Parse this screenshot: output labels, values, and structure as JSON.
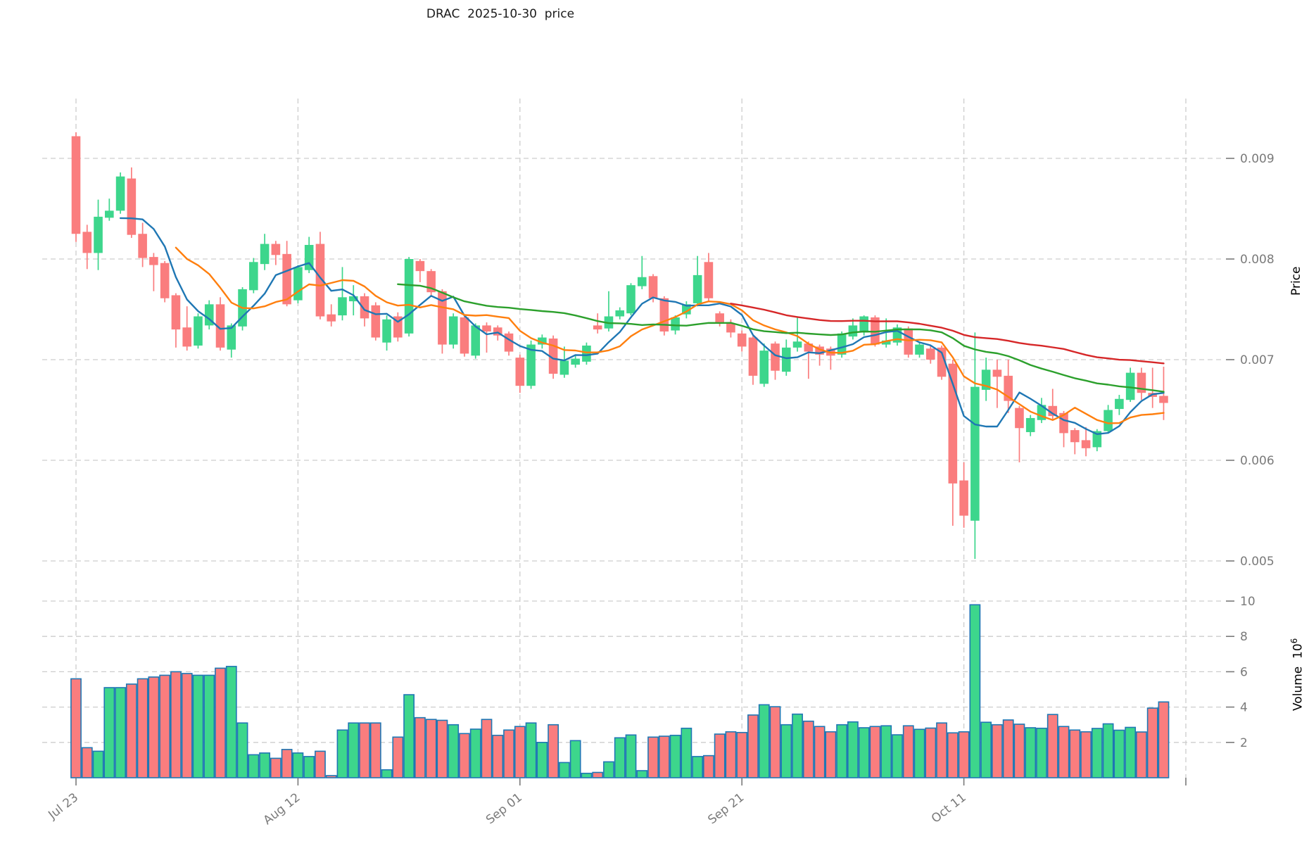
{
  "title": "DRAC  2025-10-30  price",
  "axes": {
    "price_label": "Price",
    "volume_label": "Volume  10",
    "volume_exponent": "6",
    "price_ticks": [
      0.009,
      0.008,
      0.007,
      0.006,
      0.005
    ],
    "volume_ticks": [
      10,
      8,
      6,
      4,
      2
    ],
    "x_ticks": [
      {
        "label": "Jul 23",
        "index": 0
      },
      {
        "label": "Aug 12",
        "index": 20
      },
      {
        "label": "Sep 01",
        "index": 40
      },
      {
        "label": "Sep 21",
        "index": 60
      },
      {
        "label": "Oct 11",
        "index": 80
      },
      {
        "label": "",
        "index": 100
      }
    ]
  },
  "chart_data": {
    "type": "candlestick+volume",
    "title": "DRAC  2025-10-30  price",
    "ylabel": "Price",
    "ylabel2": "Volume 10^6",
    "price_ylim": [
      0.0047,
      0.0096
    ],
    "volume_unit": "millions",
    "x_tick_labels": [
      "Jul 23",
      "Aug 12",
      "Sep 01",
      "Sep 21",
      "Oct 11"
    ],
    "x_tick_indices": [
      0,
      20,
      40,
      60,
      80
    ],
    "grid": true,
    "note": "candles = [open, high, low, close, volume_millions], daily from Jul 23 2025",
    "candles": [
      [
        0.00922,
        0.00926,
        0.00817,
        0.00825,
        5.6
      ],
      [
        0.00827,
        0.00834,
        0.0079,
        0.00806,
        1.7
      ],
      [
        0.00806,
        0.00859,
        0.00789,
        0.00842,
        1.5
      ],
      [
        0.00841,
        0.0086,
        0.00838,
        0.00848,
        5.1
      ],
      [
        0.00848,
        0.00886,
        0.00845,
        0.00882,
        5.1
      ],
      [
        0.0088,
        0.00891,
        0.00821,
        0.00824,
        5.3
      ],
      [
        0.00825,
        0.00836,
        0.00792,
        0.00801,
        5.6
      ],
      [
        0.00802,
        0.00806,
        0.00768,
        0.00794,
        5.7
      ],
      [
        0.00796,
        0.00798,
        0.00757,
        0.00761,
        5.8
      ],
      [
        0.00764,
        0.00766,
        0.00712,
        0.0073,
        6.0
      ],
      [
        0.00732,
        0.00753,
        0.00709,
        0.00713,
        5.9
      ],
      [
        0.00714,
        0.00746,
        0.00711,
        0.00743,
        5.8
      ],
      [
        0.00734,
        0.00759,
        0.0073,
        0.00755,
        5.8
      ],
      [
        0.00755,
        0.00762,
        0.00709,
        0.00712,
        6.2
      ],
      [
        0.0071,
        0.00736,
        0.00702,
        0.00734,
        6.3
      ],
      [
        0.00733,
        0.00772,
        0.00729,
        0.0077,
        3.1
      ],
      [
        0.00769,
        0.00801,
        0.00766,
        0.00797,
        1.3
      ],
      [
        0.00795,
        0.00825,
        0.00789,
        0.00815,
        1.4
      ],
      [
        0.00815,
        0.00818,
        0.00794,
        0.00804,
        1.1
      ],
      [
        0.00805,
        0.00818,
        0.00753,
        0.00755,
        1.6
      ],
      [
        0.00759,
        0.00794,
        0.00756,
        0.00792,
        1.4
      ],
      [
        0.00789,
        0.00822,
        0.00786,
        0.00814,
        1.2
      ],
      [
        0.00815,
        0.00827,
        0.0074,
        0.00743,
        1.5
      ],
      [
        0.00745,
        0.00755,
        0.00733,
        0.00738,
        0.12
      ],
      [
        0.00744,
        0.00792,
        0.00739,
        0.00762,
        2.7
      ],
      [
        0.00758,
        0.00774,
        0.00744,
        0.00763,
        3.1
      ],
      [
        0.00763,
        0.00766,
        0.00733,
        0.00741,
        3.1
      ],
      [
        0.00754,
        0.00757,
        0.00719,
        0.00722,
        3.1
      ],
      [
        0.00717,
        0.00744,
        0.00709,
        0.0074,
        0.45
      ],
      [
        0.00743,
        0.00747,
        0.00718,
        0.00722,
        2.3
      ],
      [
        0.00726,
        0.00802,
        0.00723,
        0.008,
        4.7
      ],
      [
        0.00798,
        0.008,
        0.00777,
        0.00788,
        3.4
      ],
      [
        0.00788,
        0.0079,
        0.00763,
        0.00767,
        3.3
      ],
      [
        0.00768,
        0.0077,
        0.00706,
        0.00715,
        3.25
      ],
      [
        0.00715,
        0.00746,
        0.00711,
        0.00743,
        3.0
      ],
      [
        0.00742,
        0.00744,
        0.00703,
        0.00706,
        2.5
      ],
      [
        0.00704,
        0.00736,
        0.00701,
        0.00734,
        2.75
      ],
      [
        0.00734,
        0.00737,
        0.00707,
        0.00728,
        3.3
      ],
      [
        0.00732,
        0.00734,
        0.00719,
        0.00724,
        2.4
      ],
      [
        0.00726,
        0.00728,
        0.00704,
        0.00708,
        2.7
      ],
      [
        0.00702,
        0.00705,
        0.00667,
        0.00674,
        2.9
      ],
      [
        0.00674,
        0.00719,
        0.00671,
        0.00715,
        3.1
      ],
      [
        0.00715,
        0.00725,
        0.00711,
        0.00722,
        2.0
      ],
      [
        0.00721,
        0.00724,
        0.00681,
        0.00686,
        3.0
      ],
      [
        0.00685,
        0.00713,
        0.00682,
        0.00699,
        0.86
      ],
      [
        0.00695,
        0.00704,
        0.00692,
        0.00701,
        2.1
      ],
      [
        0.00698,
        0.00717,
        0.00695,
        0.00714,
        0.25
      ],
      [
        0.00734,
        0.00746,
        0.00726,
        0.0073,
        0.3
      ],
      [
        0.00731,
        0.00768,
        0.00728,
        0.00743,
        0.9
      ],
      [
        0.00743,
        0.00752,
        0.0074,
        0.00749,
        2.26
      ],
      [
        0.00746,
        0.00776,
        0.00744,
        0.00774,
        2.42
      ],
      [
        0.00773,
        0.00803,
        0.0077,
        0.00782,
        0.4
      ],
      [
        0.00783,
        0.00785,
        0.00757,
        0.00761,
        2.3
      ],
      [
        0.00761,
        0.00763,
        0.00724,
        0.00728,
        2.35
      ],
      [
        0.00729,
        0.00744,
        0.00725,
        0.00742,
        2.4
      ],
      [
        0.00745,
        0.00758,
        0.00741,
        0.00755,
        2.8
      ],
      [
        0.00756,
        0.00803,
        0.00753,
        0.00784,
        1.2
      ],
      [
        0.00797,
        0.00806,
        0.00757,
        0.00761,
        1.25
      ],
      [
        0.00746,
        0.00748,
        0.00733,
        0.00737,
        2.47
      ],
      [
        0.00736,
        0.0074,
        0.00722,
        0.00727,
        2.6
      ],
      [
        0.00726,
        0.00729,
        0.00708,
        0.00713,
        2.56
      ],
      [
        0.00722,
        0.00724,
        0.00675,
        0.00684,
        3.55
      ],
      [
        0.00676,
        0.00716,
        0.00673,
        0.00709,
        4.13
      ],
      [
        0.00716,
        0.00718,
        0.0068,
        0.00689,
        4.02
      ],
      [
        0.00688,
        0.0072,
        0.00684,
        0.00712,
        3.0
      ],
      [
        0.00712,
        0.00742,
        0.00708,
        0.00718,
        3.6
      ],
      [
        0.00716,
        0.00718,
        0.00681,
        0.00708,
        3.2
      ],
      [
        0.00713,
        0.00715,
        0.00694,
        0.00705,
        2.9
      ],
      [
        0.00711,
        0.00713,
        0.0069,
        0.00704,
        2.6
      ],
      [
        0.00705,
        0.00728,
        0.00702,
        0.00726,
        3.0
      ],
      [
        0.00723,
        0.00741,
        0.0072,
        0.00734,
        3.16
      ],
      [
        0.00727,
        0.00744,
        0.00724,
        0.00743,
        2.83
      ],
      [
        0.00742,
        0.00744,
        0.00713,
        0.00715,
        2.9
      ],
      [
        0.00715,
        0.00741,
        0.00712,
        0.00719,
        2.94
      ],
      [
        0.00717,
        0.00735,
        0.00714,
        0.00732,
        2.43
      ],
      [
        0.00731,
        0.00733,
        0.00702,
        0.00705,
        2.94
      ],
      [
        0.00705,
        0.00717,
        0.00702,
        0.00715,
        2.74
      ],
      [
        0.00711,
        0.00714,
        0.00696,
        0.007,
        2.81
      ],
      [
        0.00712,
        0.00714,
        0.0068,
        0.00683,
        3.1
      ],
      [
        0.00696,
        0.007,
        0.00535,
        0.00577,
        2.54
      ],
      [
        0.0058,
        0.00598,
        0.00533,
        0.00545,
        2.6
      ],
      [
        0.0054,
        0.00727,
        0.00502,
        0.00673,
        9.79
      ],
      [
        0.0067,
        0.00702,
        0.00659,
        0.0069,
        3.14
      ],
      [
        0.0069,
        0.007,
        0.00652,
        0.00683,
        3.0
      ],
      [
        0.00684,
        0.007,
        0.00647,
        0.00659,
        3.27
      ],
      [
        0.00652,
        0.00654,
        0.00598,
        0.00632,
        3.03
      ],
      [
        0.00628,
        0.00645,
        0.00624,
        0.00642,
        2.83
      ],
      [
        0.0064,
        0.00662,
        0.00637,
        0.00655,
        2.8
      ],
      [
        0.00654,
        0.00671,
        0.00641,
        0.00644,
        3.58
      ],
      [
        0.00647,
        0.00649,
        0.00613,
        0.00627,
        2.9
      ],
      [
        0.0063,
        0.00632,
        0.00606,
        0.00618,
        2.7
      ],
      [
        0.0062,
        0.00633,
        0.00604,
        0.00612,
        2.6
      ],
      [
        0.00613,
        0.00631,
        0.00609,
        0.00629,
        2.79
      ],
      [
        0.00629,
        0.00655,
        0.00627,
        0.0065,
        3.05
      ],
      [
        0.00651,
        0.00665,
        0.00645,
        0.00661,
        2.69
      ],
      [
        0.0066,
        0.00692,
        0.00658,
        0.00687,
        2.85
      ],
      [
        0.00687,
        0.00692,
        0.0066,
        0.00667,
        2.59
      ],
      [
        0.00667,
        0.00692,
        0.00652,
        0.00663,
        3.94
      ],
      [
        0.00664,
        0.00693,
        0.0064,
        0.00657,
        4.29
      ]
    ],
    "ma_lines": [
      {
        "name": "MA5",
        "window": 5,
        "color": "#1f77b4"
      },
      {
        "name": "MA10",
        "window": 10,
        "color": "#ff7f0e"
      },
      {
        "name": "MA30",
        "window": 30,
        "color": "#2ca02c"
      },
      {
        "name": "MA60",
        "window": 60,
        "color": "#d62728"
      }
    ],
    "legend_position": "none"
  },
  "colors": {
    "up": "#3dd68c",
    "down": "#fa7d7e",
    "volume_edge": "#1f77b4",
    "grid": "#cdcdcd",
    "tick_text": "#7a7a7a",
    "title_text": "#1b1b1b"
  }
}
